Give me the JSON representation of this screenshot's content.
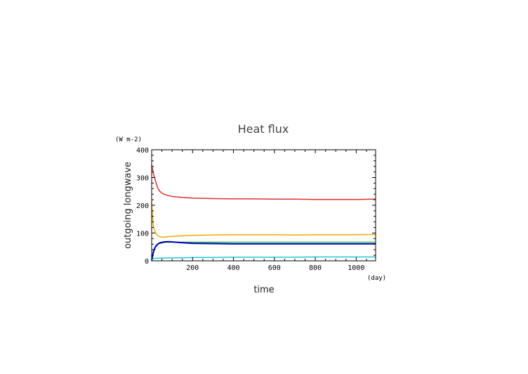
{
  "chart_data": {
    "type": "line",
    "title": "Heat flux",
    "xlabel": "time",
    "ylabel": "outgoing longwave",
    "x_unit": "(day)",
    "y_unit": "(W m-2)",
    "xlim": [
      0,
      1095
    ],
    "ylim": [
      0,
      400
    ],
    "x_ticks": [
      200,
      400,
      600,
      800,
      1000
    ],
    "y_ticks": [
      0,
      100,
      200,
      300,
      400
    ],
    "grid": false,
    "series": [
      {
        "color": "#e03030",
        "x": [
          0,
          10,
          20,
          30,
          40,
          50,
          60,
          80,
          100,
          150,
          200,
          300,
          400,
          500,
          600,
          700,
          800,
          900,
          1000,
          1095
        ],
        "values": [
          345,
          310,
          285,
          262,
          250,
          244,
          240,
          235,
          232,
          228,
          226,
          224,
          223,
          223,
          222,
          222,
          221,
          221,
          221,
          222
        ]
      },
      {
        "color": "#f2a900",
        "x": [
          0,
          5,
          10,
          20,
          30,
          40,
          50,
          60,
          80,
          100,
          150,
          200,
          300,
          400,
          500,
          600,
          700,
          800,
          900,
          1000,
          1095
        ],
        "values": [
          210,
          150,
          120,
          100,
          90,
          86,
          85,
          85,
          87,
          88,
          90,
          92,
          93,
          94,
          94,
          94,
          93,
          94,
          94,
          94,
          95
        ]
      },
      {
        "color": "#30c030",
        "x": [
          0,
          5,
          10,
          20,
          30,
          40,
          60,
          80,
          100,
          150,
          200,
          300,
          400,
          500,
          600,
          700,
          800,
          900,
          1000,
          1095
        ],
        "values": [
          5,
          25,
          40,
          55,
          60,
          62,
          66,
          67,
          67,
          67,
          67,
          67,
          67,
          67,
          67,
          67,
          67,
          67,
          67,
          67
        ]
      },
      {
        "color": "#0000cc",
        "x": [
          0,
          5,
          10,
          20,
          30,
          40,
          60,
          80,
          100,
          150,
          200,
          300,
          400,
          500,
          600,
          700,
          800,
          900,
          1000,
          1095
        ],
        "values": [
          0,
          20,
          35,
          52,
          60,
          65,
          68,
          69,
          68,
          65,
          63,
          62,
          61,
          61,
          61,
          61,
          61,
          61,
          61,
          61
        ]
      },
      {
        "color": "#20c8d8",
        "x": [
          0,
          5,
          10,
          20,
          30,
          50,
          100,
          150,
          200,
          300,
          400,
          500,
          600,
          700,
          800,
          900,
          1000,
          1095
        ],
        "values": [
          0,
          5,
          8,
          9,
          9,
          10,
          11,
          11,
          12,
          12,
          13,
          13,
          13,
          13,
          14,
          14,
          14,
          14
        ]
      }
    ]
  }
}
